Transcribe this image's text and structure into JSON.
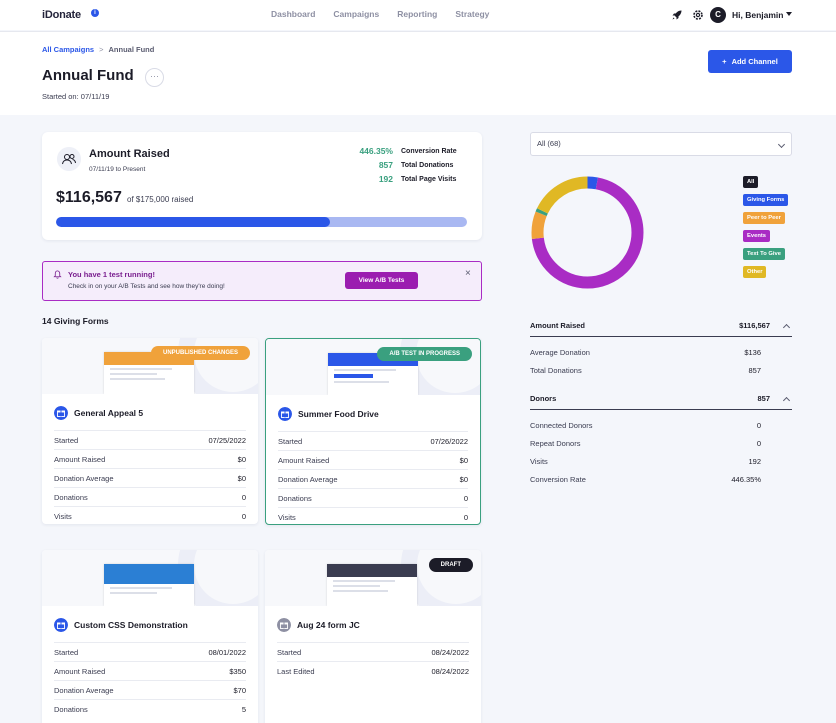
{
  "topnav": {
    "logo": "iDonate",
    "info_icon": "info-icon",
    "links": [
      "Dashboard",
      "Campaigns",
      "Reporting",
      "Strategy"
    ],
    "avatar_initial": "C",
    "user_greeting": "Hi, Benjamin"
  },
  "header": {
    "crumb_link": "All Campaigns",
    "crumb_sep": ">",
    "crumb_current": "Annual Fund",
    "title": "Annual Fund",
    "more": "···",
    "started": "Started on: 07/11/19",
    "add_channel": "Add Channel",
    "add_icon": "+"
  },
  "amount": {
    "title": "Amount Raised",
    "range": "07/11/19 to Present",
    "raised": "$116,567",
    "goal_text": "of $175,000 raised",
    "progress_fraction": 0.666,
    "stats": [
      {
        "value": "446.35%",
        "label": "Conversion Rate"
      },
      {
        "value": "857",
        "label": "Total Donations"
      },
      {
        "value": "192",
        "label": "Total Page Visits"
      }
    ]
  },
  "test_banner": {
    "title": "You have 1 test running!",
    "subtitle": "Check in on your A/B Tests and see how they're doing!",
    "button": "View A/B Tests",
    "close": "×"
  },
  "forms_count": "14 Giving Forms",
  "forms": [
    {
      "name": "General Appeal 5",
      "badge": "UNPUBLISHED CHANGES",
      "badge_color": "#f0a23b",
      "thumb_color": "#f0a23b",
      "icon_color": "#2b57e8",
      "rows": [
        {
          "k": "Started",
          "v": "07/25/2022"
        },
        {
          "k": "Amount Raised",
          "v": "$0"
        },
        {
          "k": "Donation Average",
          "v": "$0"
        },
        {
          "k": "Donations",
          "v": "0"
        },
        {
          "k": "Visits",
          "v": "0"
        }
      ]
    },
    {
      "name": "Summer Food Drive",
      "badge": "A/B TEST IN PROGRESS",
      "badge_color": "#3aa07f",
      "thumb_color": "#2b57e8",
      "icon_color": "#2b57e8",
      "rows": [
        {
          "k": "Started",
          "v": "07/26/2022"
        },
        {
          "k": "Amount Raised",
          "v": "$0"
        },
        {
          "k": "Donation Average",
          "v": "$0"
        },
        {
          "k": "Donations",
          "v": "0"
        },
        {
          "k": "Visits",
          "v": "0"
        }
      ]
    },
    {
      "name": "Custom CSS Demonstration",
      "badge": "",
      "thumb_color": "#2b7fd4",
      "icon_color": "#2b57e8",
      "rows": [
        {
          "k": "Started",
          "v": "08/01/2022"
        },
        {
          "k": "Amount Raised",
          "v": "$350"
        },
        {
          "k": "Donation Average",
          "v": "$70"
        },
        {
          "k": "Donations",
          "v": "5"
        }
      ]
    },
    {
      "name": "Aug 24 form JC",
      "badge": "DRAFT",
      "badge_color": "#1c1c28",
      "thumb_color": "#3a3c50",
      "icon_color": "#8e90a3",
      "rows": [
        {
          "k": "Started",
          "v": "08/24/2022"
        },
        {
          "k": "Last Edited",
          "v": "08/24/2022"
        }
      ]
    }
  ],
  "right": {
    "filter": "All (68)",
    "legend": [
      {
        "label": "All",
        "color": "#1c1c28"
      },
      {
        "label": "Giving Forms",
        "color": "#2b57e8"
      },
      {
        "label": "Peer to Peer",
        "color": "#f0a23b"
      },
      {
        "label": "Events",
        "color": "#a92cc4"
      },
      {
        "label": "Text To Give",
        "color": "#3aa07f"
      },
      {
        "label": "Other",
        "color": "#e0b824"
      }
    ],
    "amount_section": {
      "title": "Amount Raised",
      "value": "$116,567",
      "rows": [
        {
          "k": "Average Donation",
          "v": "$136"
        },
        {
          "k": "Total Donations",
          "v": "857"
        }
      ]
    },
    "donors_section": {
      "title": "Donors",
      "value": "857",
      "rows": [
        {
          "k": "Connected Donors",
          "v": "0"
        },
        {
          "k": "Repeat Donors",
          "v": "0"
        },
        {
          "k": "Visits",
          "v": "192"
        },
        {
          "k": "Conversion Rate",
          "v": "446.35%"
        }
      ]
    }
  },
  "chart_data": {
    "type": "pie",
    "donut": true,
    "categories": [
      "Giving Forms",
      "Events",
      "Peer to Peer",
      "Text To Give",
      "Other"
    ],
    "values": [
      3,
      70,
      8,
      1,
      18
    ],
    "colors": [
      "#2b57e8",
      "#a92cc4",
      "#f0a23b",
      "#3aa07f",
      "#e0b824"
    ]
  }
}
